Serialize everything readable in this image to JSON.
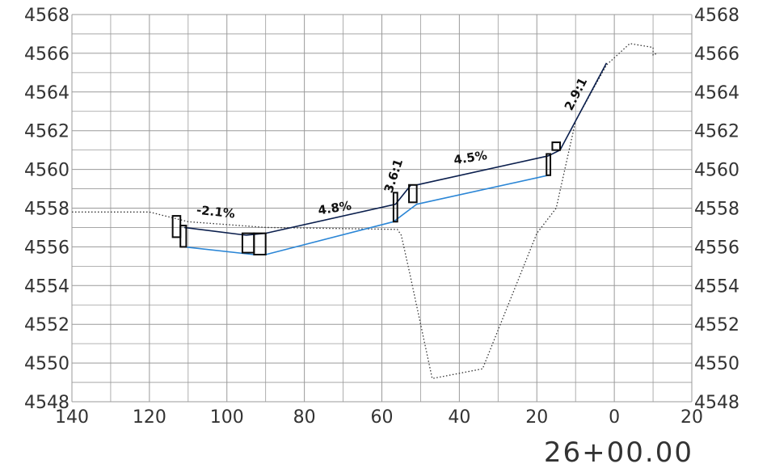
{
  "chart_data": {
    "type": "line",
    "title": "",
    "subtitle": "26+00.00",
    "xlabel": "",
    "ylabel": "",
    "xlim": [
      140,
      -20
    ],
    "ylim": [
      4548,
      4568
    ],
    "x_reversed": true,
    "grid": true,
    "x_ticks": [
      "140",
      "120",
      "100",
      "80",
      "60",
      "40",
      "20",
      "0",
      "20"
    ],
    "y_ticks": [
      "4548",
      "4550",
      "4552",
      "4554",
      "4556",
      "4558",
      "4560",
      "4562",
      "4564",
      "4566",
      "4568"
    ],
    "series": [
      {
        "style": "dotted",
        "color": "#333333",
        "points": [
          [
            140,
            4557.8
          ],
          [
            120,
            4557.8
          ],
          [
            110,
            4557.3
          ],
          [
            90,
            4557.0
          ],
          [
            56,
            4556.9
          ],
          [
            55,
            4556.6
          ],
          [
            53,
            4554.8
          ],
          [
            47,
            4549.2
          ],
          [
            34,
            4549.7
          ],
          [
            20,
            4556.7
          ],
          [
            15,
            4558.0
          ],
          [
            10,
            4562.5
          ],
          [
            2,
            4565.4
          ],
          [
            -4,
            4566.5
          ],
          [
            -10,
            4566.3
          ],
          [
            -10,
            4565.9
          ],
          [
            -11,
            4566.0
          ]
        ]
      },
      {
        "style": "solid",
        "color": "#0b1f4d",
        "points": [
          [
            111,
            4557.0
          ],
          [
            95,
            4556.6
          ],
          [
            90,
            4556.7
          ],
          [
            56.5,
            4558.2
          ],
          [
            52.5,
            4559.2
          ],
          [
            51,
            4559.2
          ],
          [
            17,
            4560.7
          ],
          [
            14,
            4561.0
          ],
          [
            2,
            4565.5
          ]
        ]
      },
      {
        "style": "solid",
        "color": "#2b86d6",
        "points": [
          [
            111,
            4556.0
          ],
          [
            93,
            4555.6
          ],
          [
            90,
            4555.6
          ],
          [
            57,
            4557.3
          ],
          [
            51,
            4558.2
          ],
          [
            17,
            4559.7
          ]
        ]
      }
    ],
    "annotations": [
      {
        "text": "-2.1%",
        "x": 103,
        "y": 4557.6
      },
      {
        "text": "4.8%",
        "x": 72,
        "y": 4557.8
      },
      {
        "text": "3.6:1",
        "x": 56,
        "y": 4559.6
      },
      {
        "text": "4.5%",
        "x": 37,
        "y": 4560.4
      },
      {
        "text": "2.9:1",
        "x": 9,
        "y": 4563.8
      }
    ]
  }
}
